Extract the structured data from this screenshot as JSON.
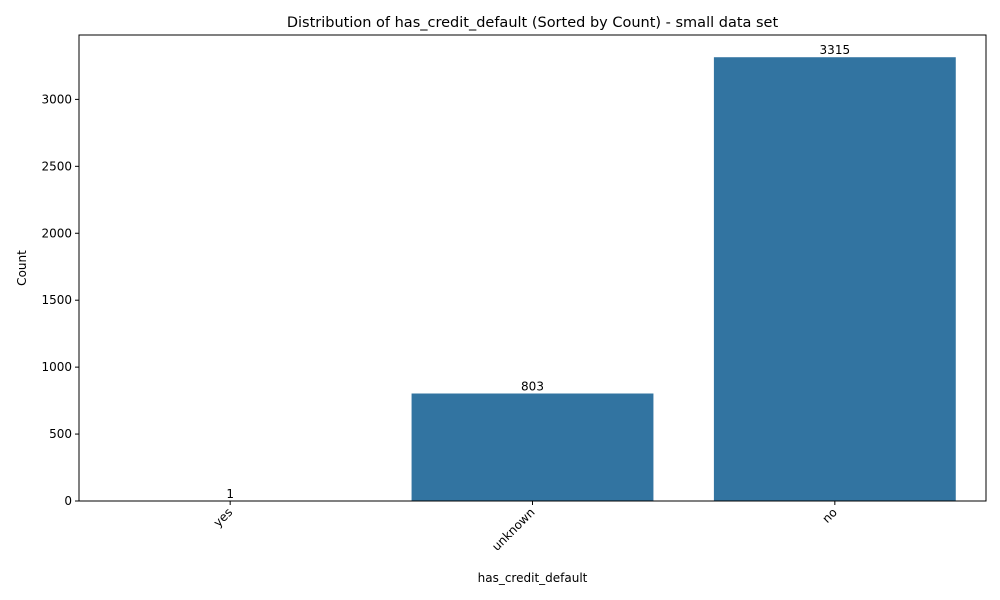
{
  "chart_data": {
    "type": "bar",
    "title": "Distribution of has_credit_default (Sorted by Count) - small data set",
    "xlabel": "has_credit_default",
    "ylabel": "Count",
    "categories": [
      "yes",
      "unknown",
      "no"
    ],
    "values": [
      1,
      803,
      3315
    ],
    "data_labels": [
      "1",
      "803",
      "3315"
    ],
    "ylim": [
      0,
      3481
    ],
    "yticks": [
      0,
      500,
      1000,
      1500,
      2000,
      2500,
      3000
    ],
    "ytick_labels": [
      "0",
      "500",
      "1000",
      "1500",
      "2000",
      "2500",
      "3000"
    ],
    "bar_color": "#3274a1",
    "grid": false,
    "legend": "none"
  }
}
